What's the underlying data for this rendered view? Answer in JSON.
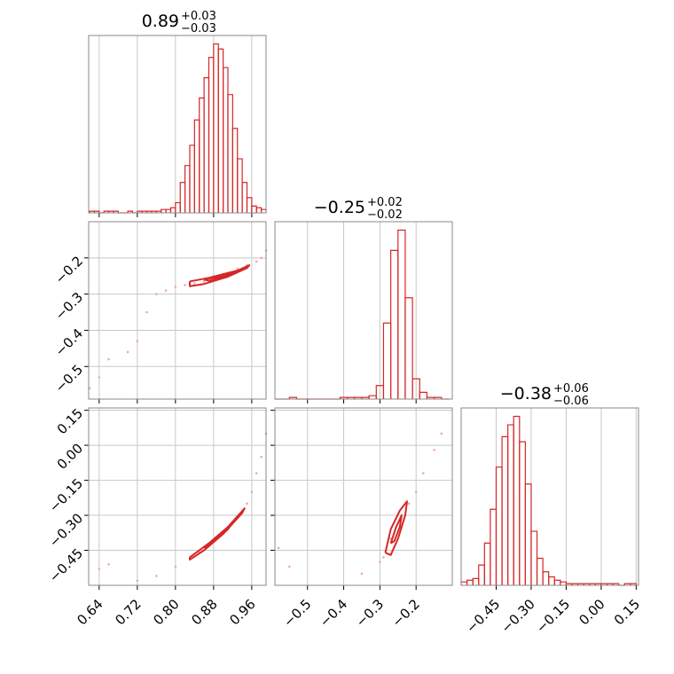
{
  "chart_data": {
    "type": "corner",
    "color": "#d62728",
    "point_color": "#f4a6a6",
    "grid": true,
    "parameters": [
      {
        "title": "0.89",
        "upper": "+0.03",
        "lower": "−0.03",
        "lim": [
          0.618,
          0.99
        ],
        "ticks": [
          0.64,
          0.72,
          {
            "value": 0.8,
            "label": "0.80"
          },
          0.88,
          0.96
        ],
        "ylim": [
          0,
          105
        ],
        "bins": [
          0.62,
          0.63,
          0.64,
          0.65,
          0.66,
          0.67,
          0.68,
          0.69,
          0.7,
          0.71,
          0.72,
          0.73,
          0.74,
          0.75,
          0.76,
          0.77,
          0.78,
          0.79,
          0.8,
          0.81,
          0.82,
          0.83,
          0.84,
          0.85,
          0.86,
          0.87,
          0.88,
          0.89,
          0.9,
          0.91,
          0.92,
          0.93,
          0.94,
          0.95,
          0.96,
          0.97,
          0.98,
          0.99
        ],
        "counts": [
          1,
          1,
          0,
          1,
          1,
          1,
          0,
          0,
          1,
          0,
          1,
          1,
          1,
          1,
          1,
          2,
          2,
          3,
          6,
          18,
          28,
          40,
          55,
          68,
          80,
          92,
          100,
          97,
          86,
          70,
          50,
          32,
          18,
          9,
          4,
          3,
          2
        ]
      },
      {
        "title": "−0.25",
        "upper": "+0.02",
        "lower": "−0.02",
        "lim": [
          -0.59,
          -0.1
        ],
        "ticks": [
          {
            "value": -0.5,
            "label": "−0.5"
          },
          {
            "value": -0.4,
            "label": "−0.4"
          },
          {
            "value": -0.3,
            "label": "−0.3"
          },
          {
            "value": -0.2,
            "label": "−0.2"
          }
        ],
        "ylim": [
          0,
          105
        ],
        "bins": [
          -0.59,
          -0.57,
          -0.55,
          -0.53,
          -0.51,
          -0.49,
          -0.47,
          -0.45,
          -0.43,
          -0.41,
          -0.39,
          -0.37,
          -0.35,
          -0.33,
          -0.31,
          -0.29,
          -0.27,
          -0.25,
          -0.23,
          -0.21,
          -0.19,
          -0.17,
          -0.15,
          -0.13,
          -0.11
        ],
        "counts": [
          0,
          0,
          1,
          0,
          0,
          0,
          0,
          0,
          0,
          1,
          1,
          1,
          1,
          2,
          8,
          45,
          88,
          100,
          60,
          12,
          4,
          1,
          1,
          0
        ]
      },
      {
        "title": "−0.38",
        "upper": "+0.06",
        "lower": "−0.06",
        "lim": [
          -0.6,
          0.16
        ],
        "ticks": [
          {
            "value": -0.45,
            "label": "−0.45"
          },
          {
            "value": -0.3,
            "label": "−0.30"
          },
          {
            "value": -0.15,
            "label": "−0.15"
          },
          {
            "value": 0,
            "label": "0.00"
          },
          0.15
        ],
        "ylim": [
          0,
          105
        ],
        "bins": [
          -0.6,
          -0.575,
          -0.55,
          -0.525,
          -0.5,
          -0.475,
          -0.45,
          -0.425,
          -0.4,
          -0.375,
          -0.35,
          -0.325,
          -0.3,
          -0.275,
          -0.25,
          -0.225,
          -0.2,
          -0.175,
          -0.15,
          -0.125,
          -0.1,
          -0.075,
          -0.05,
          -0.025,
          0,
          0.025,
          0.05,
          0.075,
          0.1,
          0.125,
          0.15
        ],
        "counts": [
          2,
          3,
          4,
          12,
          25,
          45,
          70,
          88,
          95,
          100,
          85,
          60,
          32,
          16,
          8,
          5,
          3,
          2,
          1,
          1,
          1,
          1,
          1,
          1,
          1,
          1,
          1,
          0,
          1,
          1
        ]
      }
    ],
    "pairs": [
      {
        "x": [
          0.84,
          0.86,
          0.9,
          0.93,
          0.95,
          0.97,
          0.98,
          0.8,
          0.78,
          0.76,
          0.74,
          0.72,
          0.66,
          0.64,
          0.62,
          0.99,
          0.92,
          0.88,
          0.82,
          0.7
        ],
        "y": [
          -0.27,
          -0.265,
          -0.245,
          -0.23,
          -0.22,
          -0.21,
          -0.2,
          -0.28,
          -0.29,
          -0.3,
          -0.35,
          -0.43,
          -0.48,
          -0.53,
          -0.56,
          -0.18,
          -0.24,
          -0.25,
          -0.275,
          -0.46
        ],
        "contours": [
          {
            "x": [
              0.83,
              0.87,
              0.93,
              0.955,
              0.95,
              0.91,
              0.86,
              0.83,
              0.83
            ],
            "y": [
              -0.265,
              -0.255,
              -0.235,
              -0.22,
              -0.228,
              -0.252,
              -0.272,
              -0.278,
              -0.265
            ]
          },
          {
            "x": [
              0.86,
              0.91,
              0.93,
              0.9,
              0.87,
              0.86
            ],
            "y": [
              -0.26,
              -0.245,
              -0.238,
              -0.252,
              -0.263,
              -0.26
            ]
          }
        ]
      },
      {
        "x": [
          0.96,
          0.98,
          0.99,
          0.97,
          0.8,
          0.76,
          0.72,
          0.66,
          0.64,
          0.85,
          0.92,
          0.95
        ],
        "y": [
          -0.2,
          -0.05,
          0.05,
          -0.12,
          -0.52,
          -0.56,
          -0.58,
          -0.51,
          -0.53,
          -0.46,
          -0.33,
          -0.25
        ],
        "contours": [
          {
            "x": [
              0.83,
              0.87,
              0.91,
              0.945,
              0.94,
              0.9,
              0.86,
              0.83,
              0.83
            ],
            "y": [
              -0.48,
              -0.42,
              -0.35,
              -0.27,
              -0.29,
              -0.38,
              -0.45,
              -0.49,
              -0.48
            ]
          },
          {
            "x": [
              0.86,
              0.9,
              0.92,
              0.91,
              0.87,
              0.86
            ],
            "y": [
              -0.44,
              -0.37,
              -0.33,
              -0.36,
              -0.43,
              -0.44
            ]
          }
        ]
      },
      {
        "x": [
          -0.2,
          -0.18,
          -0.15,
          -0.13,
          -0.22,
          -0.29,
          -0.3,
          -0.55,
          -0.58,
          -0.35,
          -0.27,
          -0.24
        ],
        "y": [
          -0.2,
          -0.12,
          -0.02,
          0.05,
          -0.25,
          -0.48,
          -0.5,
          -0.52,
          -0.44,
          -0.55,
          -0.4,
          -0.3
        ],
        "contours": [
          {
            "x": [
              -0.285,
              -0.27,
              -0.245,
              -0.225,
              -0.23,
              -0.25,
              -0.27,
              -0.285
            ],
            "y": [
              -0.46,
              -0.36,
              -0.28,
              -0.24,
              -0.3,
              -0.4,
              -0.47,
              -0.46
            ]
          },
          {
            "x": [
              -0.27,
              -0.255,
              -0.24,
              -0.245,
              -0.26,
              -0.27
            ],
            "y": [
              -0.42,
              -0.35,
              -0.3,
              -0.35,
              -0.41,
              -0.42
            ]
          }
        ]
      }
    ]
  }
}
